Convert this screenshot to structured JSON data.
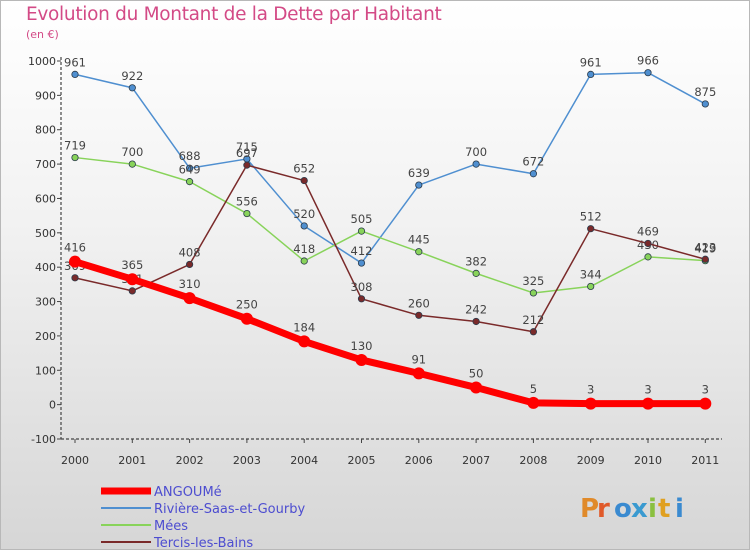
{
  "chart_data": {
    "type": "line",
    "title": "Evolution du Montant de la Dette par Habitant",
    "subtitle": "(en €)",
    "xlabel": "",
    "ylabel": "",
    "categories": [
      "2000",
      "2001",
      "2002",
      "2003",
      "2004",
      "2005",
      "2006",
      "2007",
      "2008",
      "2009",
      "2010",
      "2011"
    ],
    "ylim": [
      -100,
      1000
    ],
    "yticks": [
      "-100",
      "0",
      "100",
      "200",
      "300",
      "400",
      "500",
      "600",
      "700",
      "800",
      "900",
      "1000"
    ],
    "grid": false,
    "legend_position": "bottom-left",
    "series": [
      {
        "name": "ANGOUMé",
        "color": "#ff0000",
        "values": [
          416,
          365,
          310,
          250,
          184,
          130,
          91,
          50,
          5,
          3,
          3,
          3
        ]
      },
      {
        "name": "Rivière-Saas-et-Gourby",
        "color": "#4f8fd0",
        "values": [
          961,
          922,
          688,
          715,
          520,
          412,
          639,
          700,
          672,
          961,
          966,
          875
        ]
      },
      {
        "name": "Mées",
        "color": "#88d35a",
        "values": [
          719,
          700,
          649,
          556,
          418,
          505,
          445,
          382,
          325,
          344,
          430,
          419
        ]
      },
      {
        "name": "Tercis-les-Bains",
        "color": "#7a2a2a",
        "values": [
          369,
          331,
          408,
          697,
          652,
          308,
          260,
          242,
          212,
          512,
          469,
          423
        ]
      }
    ]
  },
  "branding": {
    "letters": [
      "P",
      "r",
      "o",
      "x",
      "i",
      "t",
      "i"
    ]
  },
  "colors": {
    "title": "#d34a86",
    "legend_text": "#4d4dd0"
  }
}
